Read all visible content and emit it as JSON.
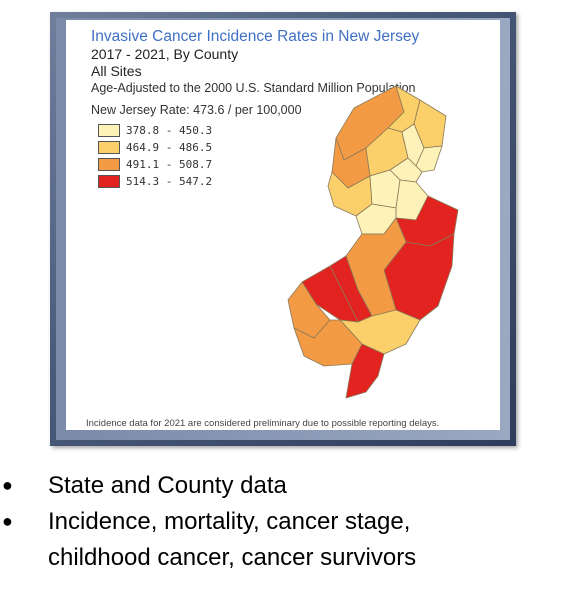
{
  "map": {
    "title": "Invasive Cancer Incidence Rates in New Jersey",
    "subtitle_line1": "2017 - 2021, By County",
    "subtitle_line2": "All Sites",
    "age_adjust_note": "Age-Adjusted to the 2000 U.S. Standard Million Population",
    "state_rate": "New Jersey Rate: 473.6 / per 100,000",
    "legend": [
      {
        "label": "378.8 - 450.3",
        "color": "#fdf3b8"
      },
      {
        "label": "464.9 - 486.5",
        "color": "#fbcf6a"
      },
      {
        "label": "491.1 - 508.7",
        "color": "#f39a44"
      },
      {
        "label": "514.3 - 547.2",
        "color": "#e3231f"
      }
    ],
    "footnote": "Incidence data for 2021 are considered preliminary due to possible reporting delays."
  },
  "bullets": [
    {
      "text": "State and County data"
    },
    {
      "text": "Incidence, mortality, cancer stage,"
    },
    {
      "text": "childhood cancer, cancer survivors"
    }
  ]
}
